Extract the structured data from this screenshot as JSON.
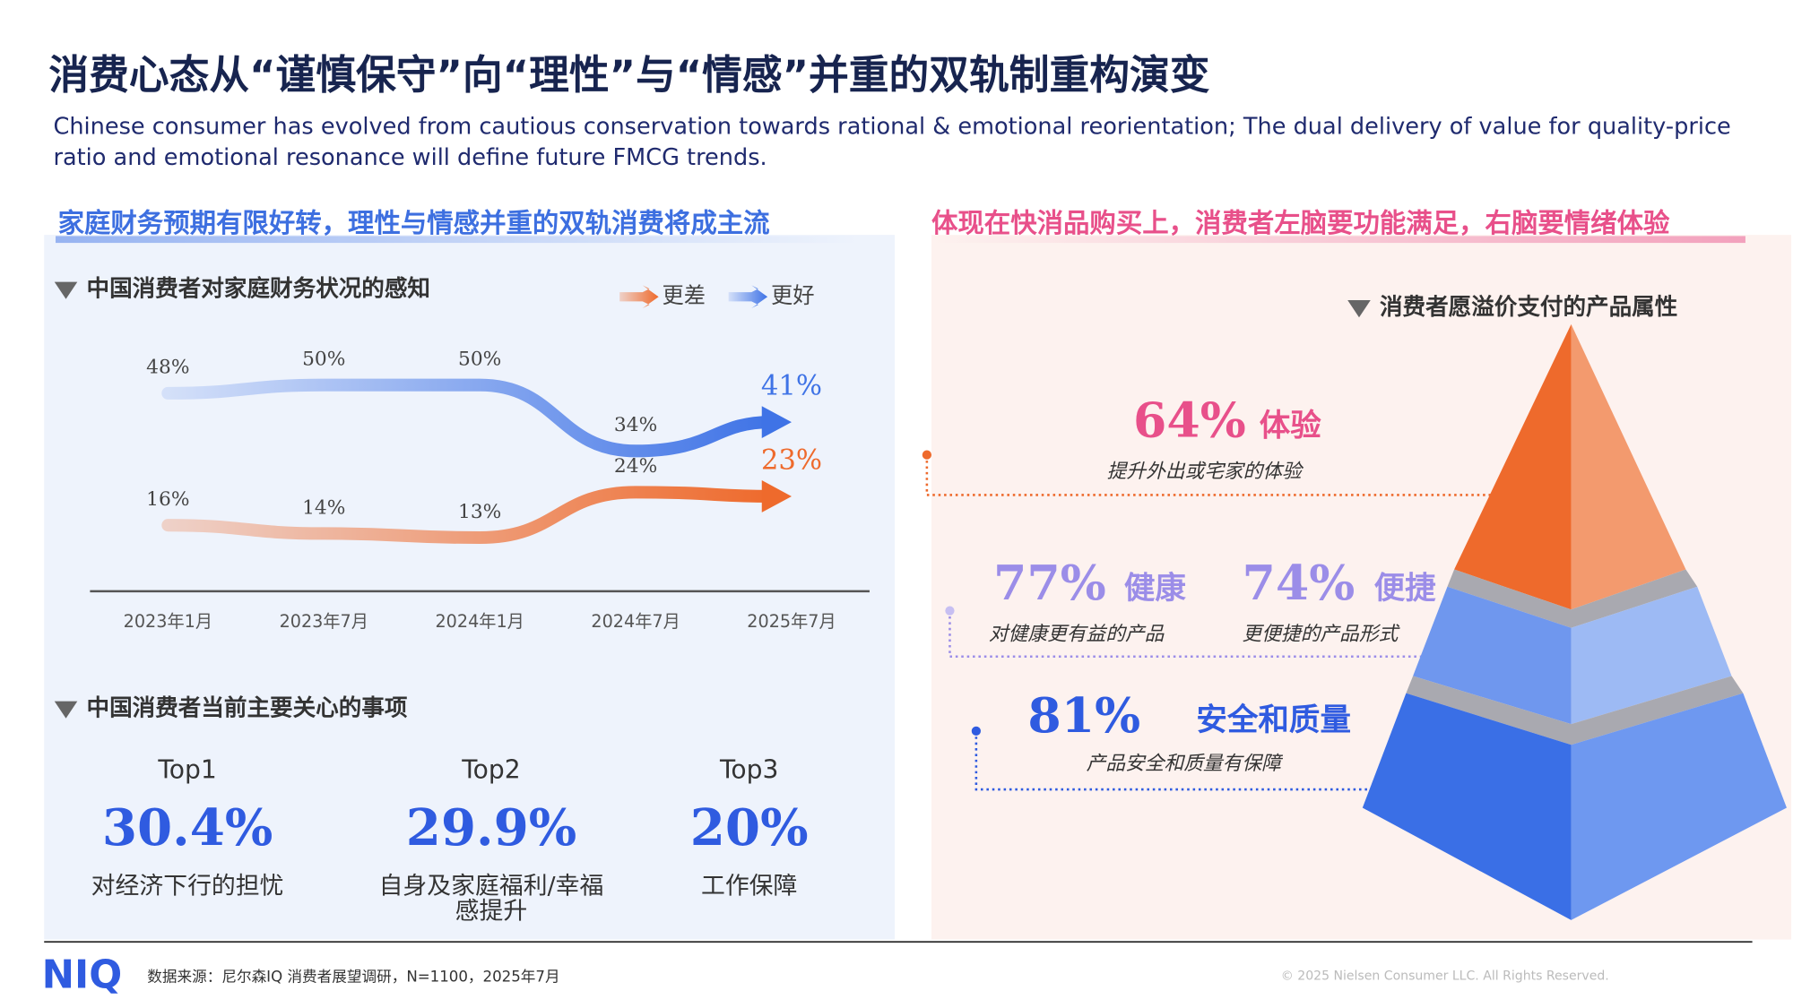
{
  "header": {
    "title": "消费心态从“谨慎保守”向“理性”与“情感”并重的双轨制重构演变",
    "subtitle": "Chinese consumer has evolved from cautious conservation towards rational & emotional reorientation; The dual delivery of value for quality-price ratio and emotional resonance will define future FMCG trends."
  },
  "left": {
    "heading": "家庭财务预期有限好转，理性与情感并重的双轨消费将成主流"
  },
  "chart_data": {
    "type": "line",
    "title": "中国消费者对家庭财务状况的感知",
    "categories": [
      "2023年1月",
      "2023年7月",
      "2024年1月",
      "2024年7月",
      "2025年7月"
    ],
    "series": [
      {
        "name": "更差",
        "color": "#ee6a2c",
        "values": [
          16,
          14,
          13,
          24,
          23
        ],
        "value_labels": [
          "16%",
          "14%",
          "13%",
          "24%",
          "23%"
        ]
      },
      {
        "name": "更好",
        "color": "#3f73e6",
        "values": [
          48,
          50,
          50,
          34,
          41
        ],
        "value_labels": [
          "48%",
          "50%",
          "50%",
          "34%",
          "41%"
        ]
      }
    ]
  },
  "concerns": {
    "title": "中国消费者当前主要关心的事项",
    "items": [
      {
        "rank": "Top1",
        "value": "30.4%",
        "label": "对经济下行的担忧"
      },
      {
        "rank": "Top2",
        "value": "29.9%",
        "label": "自身及家庭福利/幸福感提升"
      },
      {
        "rank": "Top3",
        "value": "20%",
        "label": "工作保障"
      }
    ]
  },
  "right": {
    "heading": "体现在快消品购买上，消费者左脑要功能满足，右脑要情绪体验",
    "pyramid_title": "消费者愿溢价支付的产品属性",
    "attributes": [
      {
        "value": "64%",
        "name": "体验",
        "desc": "提升外出或宅家的体验"
      },
      {
        "value": "77%",
        "name": "健康",
        "desc": "对健康更有益的产品"
      },
      {
        "value": "74%",
        "name": "便捷",
        "desc": "更便捷的产品形式"
      },
      {
        "value": "81%",
        "name": "安全和质量",
        "desc": "产品安全和质量有保障"
      }
    ]
  },
  "footer": {
    "logo": "NIQ",
    "source": "数据来源：尼尔森IQ 消费者展望调研，N=1100，2025年7月",
    "copyright": "© 2025 Nielsen Consumer LLC. All Rights Reserved."
  }
}
